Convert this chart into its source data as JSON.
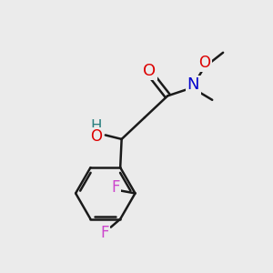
{
  "background_color": "#ebebeb",
  "bond_color": "#1a1a1a",
  "bond_width": 1.8,
  "atom_colors": {
    "O": "#dd0000",
    "N": "#0000cc",
    "F": "#cc44cc",
    "C": "#1a1a1a",
    "HO_H": "#2a8080",
    "HO_O": "#dd0000"
  },
  "font_size": 11,
  "figsize": [
    3.0,
    3.0
  ],
  "dpi": 100
}
